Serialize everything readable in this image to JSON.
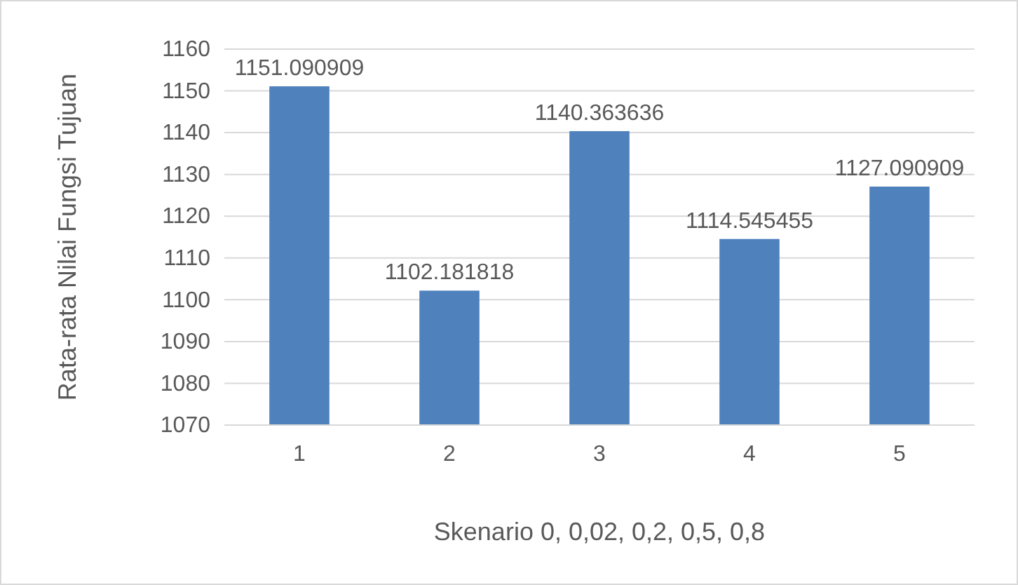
{
  "chart_data": {
    "type": "bar",
    "xlabel": "Skenario 0, 0,02, 0,2, 0,5, 0,8",
    "ylabel": "Rata-rata Nilai Fungsi Tujuan",
    "categories": [
      "1",
      "2",
      "3",
      "4",
      "5"
    ],
    "values": [
      1151.090909,
      1102.181818,
      1140.363636,
      1114.545455,
      1127.090909
    ],
    "color": "#4f81bd",
    "ylim": [
      1070,
      1160
    ],
    "yticks": [
      1070,
      1080,
      1090,
      1100,
      1110,
      1120,
      1130,
      1140,
      1150,
      1160
    ],
    "grid": "y",
    "data_labels": true
  }
}
